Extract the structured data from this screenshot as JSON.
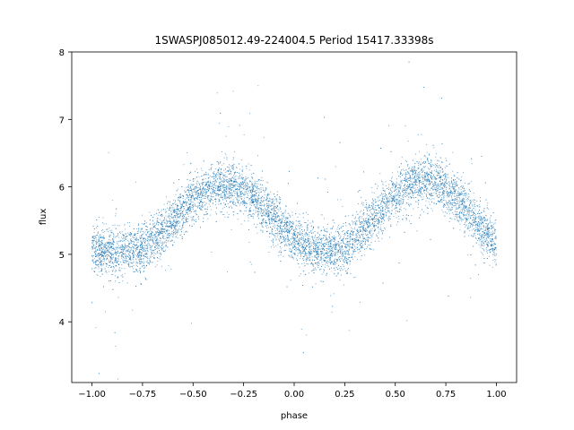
{
  "chart_data": {
    "type": "scatter",
    "title": "1SWASPJ085012.49-224004.5 Period 15417.33398s",
    "xlabel": "phase",
    "ylabel": "flux",
    "xlim": [
      -1.1,
      1.1
    ],
    "ylim": [
      3.1,
      8.0
    ],
    "x_ticks": [
      -1.0,
      -0.75,
      -0.5,
      -0.25,
      0.0,
      0.25,
      0.5,
      0.75,
      1.0
    ],
    "x_tick_labels": [
      "−1.00",
      "−0.75",
      "−0.50",
      "−0.25",
      "0.00",
      "0.25",
      "0.50",
      "0.75",
      "1.00"
    ],
    "y_ticks": [
      4,
      5,
      6,
      7,
      8
    ],
    "y_tick_labels": [
      "4",
      "5",
      "6",
      "7",
      "8"
    ],
    "grid": false,
    "legend": "none",
    "marker_color": "#1f77b4",
    "series": [
      {
        "phase_range": [
          -1.0,
          1.0
        ],
        "trend": {
          "x": [
            -1.0,
            -0.9,
            -0.8,
            -0.75,
            -0.7,
            -0.6,
            -0.5,
            -0.4,
            -0.35,
            -0.3,
            -0.2,
            -0.1,
            0.0,
            0.1,
            0.2,
            0.25,
            0.3,
            0.4,
            0.5,
            0.6,
            0.65,
            0.7,
            0.8,
            0.9,
            1.0
          ],
          "y": [
            5.05,
            5.05,
            5.05,
            5.1,
            5.2,
            5.5,
            5.8,
            6.0,
            6.05,
            6.0,
            5.85,
            5.55,
            5.2,
            5.05,
            5.05,
            5.1,
            5.25,
            5.55,
            5.85,
            6.05,
            6.1,
            6.05,
            5.85,
            5.5,
            5.15
          ]
        },
        "scatter_spread": 0.35,
        "point_count": 9000
      }
    ]
  }
}
